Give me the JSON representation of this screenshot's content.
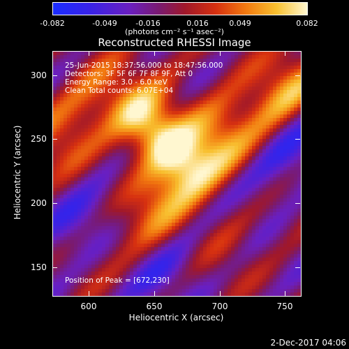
{
  "chart_data": {
    "type": "heatmap",
    "title": "Reconstructed RHESSI Image",
    "xlabel": "Heliocentric X (arcsec)",
    "ylabel": "Heliocentric Y (arcsec)",
    "xlim": [
      570,
      760
    ],
    "ylim": [
      125,
      320
    ],
    "xticks": [
      "600",
      "650",
      "700",
      "750"
    ],
    "yticks": [
      "300",
      "250",
      "200",
      "150"
    ],
    "colorbar": {
      "ticks": [
        "-0.082",
        "-0.049",
        "-0.016",
        "0.016",
        "0.049",
        "0.082"
      ],
      "unit": "(photons cm⁻² s⁻¹ asec⁻²)",
      "range": [
        -0.082,
        0.082
      ]
    },
    "peak": [
      672,
      230
    ],
    "annotations": {
      "time": "25-Jun-2015 18:37:56.000 to 18:47:56.000",
      "detectors": "Detectors: 3F 5F 6F 7F 8F 9F, Att 0",
      "energy": "Energy Range: 3.0 - 6.0 keV",
      "clean": "Clean     Total counts: 6.07E+04",
      "peak_text": "Position of Peak = [672,230]"
    }
  },
  "footer": "2-Dec-2017 04:06"
}
